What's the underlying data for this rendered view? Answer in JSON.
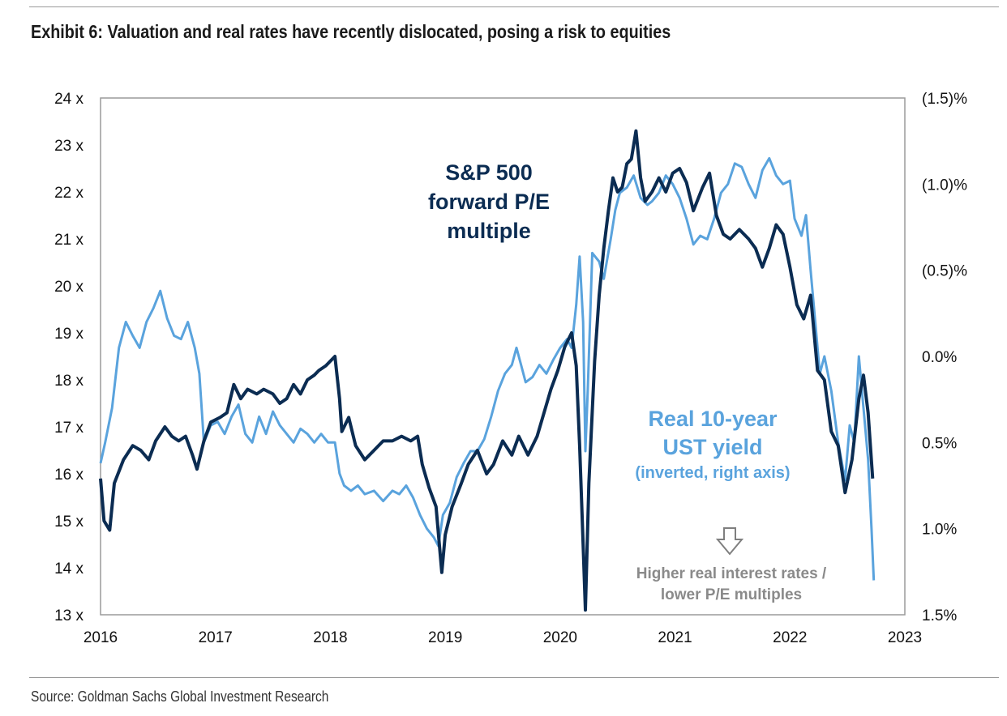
{
  "title": "Exhibit 6: Valuation and real rates have recently dislocated, posing a risk to equities",
  "source": "Source: Goldman Sachs Global Investment Research",
  "chart_data": {
    "type": "line",
    "x_ticks": [
      "2016",
      "2017",
      "2018",
      "2019",
      "2020",
      "2021",
      "2022",
      "2023"
    ],
    "xlim": [
      2016,
      2023
    ],
    "left_axis": {
      "ticks": [
        "13 x",
        "14 x",
        "15 x",
        "16 x",
        "17 x",
        "18 x",
        "19 x",
        "20 x",
        "21 x",
        "22 x",
        "23 x",
        "24 x"
      ],
      "ylim": [
        13,
        24
      ]
    },
    "right_axis": {
      "ticks": [
        "1.5%",
        "1.0%",
        "0.5%",
        "0.0%",
        "(0.5)%",
        "(1.0)%",
        "(1.5)%"
      ],
      "ylim": [
        1.5,
        -1.5
      ],
      "inverted": true
    },
    "grid": false,
    "annotations": {
      "pe_label": [
        "S&P 500",
        "forward P/E",
        "multiple"
      ],
      "yield_label": [
        "Real 10-year",
        "UST yield"
      ],
      "yield_sublabel": "(inverted, right axis)",
      "note": [
        "Higher real interest rates /",
        "lower P/E multiples"
      ]
    },
    "colors": {
      "pe": "#0b2c52",
      "yield": "#5aa3dd",
      "note": "#8a8a8a"
    },
    "series": [
      {
        "axis": "left",
        "points": [
          [
            2016.0,
            15.9
          ],
          [
            2016.03,
            15.0
          ],
          [
            2016.08,
            14.8
          ],
          [
            2016.12,
            15.8
          ],
          [
            2016.2,
            16.3
          ],
          [
            2016.28,
            16.6
          ],
          [
            2016.35,
            16.5
          ],
          [
            2016.42,
            16.3
          ],
          [
            2016.48,
            16.7
          ],
          [
            2016.56,
            17.0
          ],
          [
            2016.62,
            16.8
          ],
          [
            2016.68,
            16.7
          ],
          [
            2016.74,
            16.8
          ],
          [
            2016.8,
            16.4
          ],
          [
            2016.84,
            16.1
          ],
          [
            2016.9,
            16.7
          ],
          [
            2016.96,
            17.1
          ],
          [
            2017.04,
            17.2
          ],
          [
            2017.1,
            17.3
          ],
          [
            2017.16,
            17.9
          ],
          [
            2017.22,
            17.6
          ],
          [
            2017.28,
            17.8
          ],
          [
            2017.36,
            17.7
          ],
          [
            2017.42,
            17.8
          ],
          [
            2017.5,
            17.7
          ],
          [
            2017.56,
            17.5
          ],
          [
            2017.62,
            17.6
          ],
          [
            2017.68,
            17.9
          ],
          [
            2017.74,
            17.7
          ],
          [
            2017.8,
            18.0
          ],
          [
            2017.86,
            18.1
          ],
          [
            2017.9,
            18.2
          ],
          [
            2017.96,
            18.3
          ],
          [
            2018.04,
            18.5
          ],
          [
            2018.08,
            17.6
          ],
          [
            2018.1,
            16.9
          ],
          [
            2018.16,
            17.2
          ],
          [
            2018.22,
            16.6
          ],
          [
            2018.3,
            16.3
          ],
          [
            2018.38,
            16.5
          ],
          [
            2018.46,
            16.7
          ],
          [
            2018.54,
            16.7
          ],
          [
            2018.62,
            16.8
          ],
          [
            2018.7,
            16.7
          ],
          [
            2018.76,
            16.8
          ],
          [
            2018.8,
            16.2
          ],
          [
            2018.86,
            15.7
          ],
          [
            2018.92,
            15.3
          ],
          [
            2018.97,
            13.9
          ],
          [
            2019.0,
            14.7
          ],
          [
            2019.06,
            15.3
          ],
          [
            2019.14,
            15.8
          ],
          [
            2019.2,
            16.2
          ],
          [
            2019.28,
            16.5
          ],
          [
            2019.36,
            16.0
          ],
          [
            2019.42,
            16.2
          ],
          [
            2019.5,
            16.7
          ],
          [
            2019.58,
            16.4
          ],
          [
            2019.64,
            16.8
          ],
          [
            2019.72,
            16.4
          ],
          [
            2019.8,
            16.8
          ],
          [
            2019.86,
            17.3
          ],
          [
            2019.92,
            17.8
          ],
          [
            2019.98,
            18.2
          ],
          [
            2020.04,
            18.7
          ],
          [
            2020.1,
            19.0
          ],
          [
            2020.14,
            18.3
          ],
          [
            2020.17,
            16.6
          ],
          [
            2020.2,
            14.5
          ],
          [
            2020.22,
            13.1
          ],
          [
            2020.25,
            15.8
          ],
          [
            2020.3,
            18.4
          ],
          [
            2020.34,
            19.8
          ],
          [
            2020.38,
            20.8
          ],
          [
            2020.42,
            21.6
          ],
          [
            2020.46,
            22.3
          ],
          [
            2020.5,
            22.0
          ],
          [
            2020.54,
            22.1
          ],
          [
            2020.58,
            22.6
          ],
          [
            2020.62,
            22.7
          ],
          [
            2020.66,
            23.3
          ],
          [
            2020.7,
            22.3
          ],
          [
            2020.74,
            21.8
          ],
          [
            2020.8,
            22.0
          ],
          [
            2020.86,
            22.3
          ],
          [
            2020.92,
            22.0
          ],
          [
            2020.98,
            22.4
          ],
          [
            2021.04,
            22.5
          ],
          [
            2021.1,
            22.2
          ],
          [
            2021.16,
            21.6
          ],
          [
            2021.24,
            22.1
          ],
          [
            2021.3,
            22.4
          ],
          [
            2021.36,
            21.5
          ],
          [
            2021.42,
            21.1
          ],
          [
            2021.48,
            21.0
          ],
          [
            2021.56,
            21.2
          ],
          [
            2021.64,
            21.0
          ],
          [
            2021.7,
            20.8
          ],
          [
            2021.76,
            20.4
          ],
          [
            2021.82,
            20.8
          ],
          [
            2021.88,
            21.3
          ],
          [
            2021.94,
            21.1
          ],
          [
            2022.0,
            20.4
          ],
          [
            2022.06,
            19.6
          ],
          [
            2022.12,
            19.3
          ],
          [
            2022.18,
            19.8
          ],
          [
            2022.24,
            18.2
          ],
          [
            2022.3,
            18.0
          ],
          [
            2022.36,
            16.9
          ],
          [
            2022.42,
            16.6
          ],
          [
            2022.48,
            15.6
          ],
          [
            2022.54,
            16.3
          ],
          [
            2022.6,
            17.6
          ],
          [
            2022.64,
            18.1
          ],
          [
            2022.68,
            17.3
          ],
          [
            2022.72,
            15.9
          ]
        ]
      },
      {
        "axis": "right",
        "points": [
          [
            2016.0,
            0.62
          ],
          [
            2016.04,
            0.5
          ],
          [
            2016.1,
            0.3
          ],
          [
            2016.16,
            -0.05
          ],
          [
            2016.22,
            -0.2
          ],
          [
            2016.28,
            -0.12
          ],
          [
            2016.34,
            -0.05
          ],
          [
            2016.4,
            -0.2
          ],
          [
            2016.46,
            -0.28
          ],
          [
            2016.52,
            -0.38
          ],
          [
            2016.58,
            -0.22
          ],
          [
            2016.64,
            -0.12
          ],
          [
            2016.7,
            -0.1
          ],
          [
            2016.76,
            -0.2
          ],
          [
            2016.82,
            -0.05
          ],
          [
            2016.86,
            0.1
          ],
          [
            2016.9,
            0.5
          ],
          [
            2016.96,
            0.4
          ],
          [
            2017.02,
            0.38
          ],
          [
            2017.08,
            0.45
          ],
          [
            2017.14,
            0.35
          ],
          [
            2017.2,
            0.28
          ],
          [
            2017.26,
            0.45
          ],
          [
            2017.32,
            0.5
          ],
          [
            2017.38,
            0.35
          ],
          [
            2017.44,
            0.45
          ],
          [
            2017.5,
            0.32
          ],
          [
            2017.56,
            0.4
          ],
          [
            2017.62,
            0.45
          ],
          [
            2017.68,
            0.5
          ],
          [
            2017.74,
            0.42
          ],
          [
            2017.8,
            0.45
          ],
          [
            2017.86,
            0.5
          ],
          [
            2017.92,
            0.45
          ],
          [
            2017.98,
            0.5
          ],
          [
            2018.04,
            0.5
          ],
          [
            2018.08,
            0.68
          ],
          [
            2018.12,
            0.75
          ],
          [
            2018.18,
            0.78
          ],
          [
            2018.24,
            0.75
          ],
          [
            2018.3,
            0.8
          ],
          [
            2018.38,
            0.78
          ],
          [
            2018.46,
            0.84
          ],
          [
            2018.54,
            0.78
          ],
          [
            2018.6,
            0.8
          ],
          [
            2018.66,
            0.75
          ],
          [
            2018.72,
            0.82
          ],
          [
            2018.78,
            0.92
          ],
          [
            2018.84,
            1.0
          ],
          [
            2018.9,
            1.05
          ],
          [
            2018.94,
            1.1
          ],
          [
            2018.98,
            0.92
          ],
          [
            2019.04,
            0.85
          ],
          [
            2019.1,
            0.7
          ],
          [
            2019.16,
            0.62
          ],
          [
            2019.22,
            0.55
          ],
          [
            2019.28,
            0.55
          ],
          [
            2019.34,
            0.48
          ],
          [
            2019.4,
            0.35
          ],
          [
            2019.46,
            0.2
          ],
          [
            2019.52,
            0.1
          ],
          [
            2019.58,
            0.05
          ],
          [
            2019.62,
            -0.05
          ],
          [
            2019.66,
            0.05
          ],
          [
            2019.7,
            0.15
          ],
          [
            2019.76,
            0.12
          ],
          [
            2019.82,
            0.05
          ],
          [
            2019.88,
            0.1
          ],
          [
            2019.94,
            0.02
          ],
          [
            2020.0,
            -0.05
          ],
          [
            2020.06,
            -0.1
          ],
          [
            2020.1,
            -0.05
          ],
          [
            2020.14,
            -0.3
          ],
          [
            2020.17,
            -0.58
          ],
          [
            2020.2,
            -0.2
          ],
          [
            2020.22,
            0.55
          ],
          [
            2020.24,
            0.2
          ],
          [
            2020.28,
            -0.6
          ],
          [
            2020.34,
            -0.55
          ],
          [
            2020.38,
            -0.45
          ],
          [
            2020.44,
            -0.68
          ],
          [
            2020.48,
            -0.85
          ],
          [
            2020.52,
            -0.95
          ],
          [
            2020.58,
            -0.98
          ],
          [
            2020.64,
            -1.05
          ],
          [
            2020.7,
            -0.92
          ],
          [
            2020.76,
            -0.88
          ],
          [
            2020.8,
            -0.9
          ],
          [
            2020.86,
            -0.95
          ],
          [
            2020.92,
            -1.05
          ],
          [
            2020.98,
            -1.0
          ],
          [
            2021.04,
            -0.92
          ],
          [
            2021.1,
            -0.8
          ],
          [
            2021.16,
            -0.65
          ],
          [
            2021.22,
            -0.7
          ],
          [
            2021.28,
            -0.68
          ],
          [
            2021.34,
            -0.8
          ],
          [
            2021.4,
            -0.95
          ],
          [
            2021.46,
            -1.0
          ],
          [
            2021.52,
            -1.12
          ],
          [
            2021.58,
            -1.1
          ],
          [
            2021.64,
            -1.0
          ],
          [
            2021.7,
            -0.92
          ],
          [
            2021.76,
            -1.08
          ],
          [
            2021.82,
            -1.15
          ],
          [
            2021.88,
            -1.05
          ],
          [
            2021.94,
            -1.0
          ],
          [
            2022.0,
            -1.02
          ],
          [
            2022.04,
            -0.8
          ],
          [
            2022.1,
            -0.7
          ],
          [
            2022.14,
            -0.82
          ],
          [
            2022.18,
            -0.5
          ],
          [
            2022.22,
            -0.2
          ],
          [
            2022.26,
            0.1
          ],
          [
            2022.3,
            0.0
          ],
          [
            2022.36,
            0.2
          ],
          [
            2022.42,
            0.5
          ],
          [
            2022.48,
            0.72
          ],
          [
            2022.52,
            0.4
          ],
          [
            2022.56,
            0.5
          ],
          [
            2022.6,
            0.0
          ],
          [
            2022.64,
            0.3
          ],
          [
            2022.68,
            0.6
          ],
          [
            2022.71,
            1.0
          ],
          [
            2022.73,
            1.3
          ]
        ]
      }
    ]
  }
}
